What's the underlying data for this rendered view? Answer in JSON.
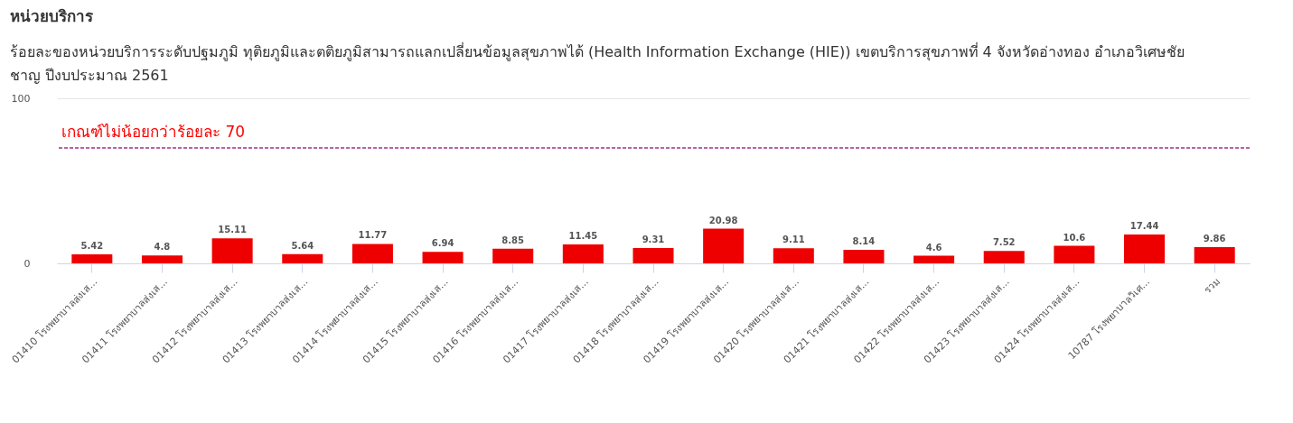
{
  "chart_data": {
    "type": "bar",
    "title": "หน่วยบริการ",
    "subtitle": "ร้อยละของหน่วยบริการระดับปฐมภูมิ ทุติยภูมิและตติยภูมิสามารถแลกเปลี่ยนข้อมูลสุขภาพได้ (Health Information Exchange (HIE)) เขตบริการสุขภาพที่ 4 จังหวัดอ่างทอง อำเภอวิเศษชัย\nชาญ ปีงบประมาณ 2561",
    "categories": [
      "01410 โรงพยาบาลส่งเส...",
      "01411 โรงพยาบาลส่งเส...",
      "01412 โรงพยาบาลส่งเส...",
      "01413 โรงพยาบาลส่งเส...",
      "01414 โรงพยาบาลส่งเส...",
      "01415 โรงพยาบาลส่งเส...",
      "01416 โรงพยาบาลส่งเส...",
      "01417 โรงพยาบาลส่งเส...",
      "01418 โรงพยาบาลส่งเส...",
      "01419 โรงพยาบาลส่งเส...",
      "01420 โรงพยาบาลส่งเส...",
      "01421 โรงพยาบาลส่งเส...",
      "01422 โรงพยาบาลส่งเส...",
      "01423 โรงพยาบาลส่งเส...",
      "01424 โรงพยาบาลส่งเส...",
      "10787 โรงพยาบาลวิเศ...",
      "รวม"
    ],
    "values": [
      5.42,
      4.8,
      15.11,
      5.64,
      11.77,
      6.94,
      8.85,
      11.45,
      9.31,
      20.98,
      9.11,
      8.14,
      4.6,
      7.52,
      10.6,
      17.44,
      9.86
    ],
    "color": "#ee0000",
    "ylim": [
      0,
      100
    ],
    "yticks": [
      0,
      100
    ],
    "grid": "y",
    "data_labels": true,
    "ref_lines": [
      {
        "axis": "y",
        "value": 70,
        "label": "เกณฑ์ไม่น้อยกว่าร้อยละ 70",
        "color": "#a0308a",
        "line_style": "dashed"
      }
    ]
  }
}
